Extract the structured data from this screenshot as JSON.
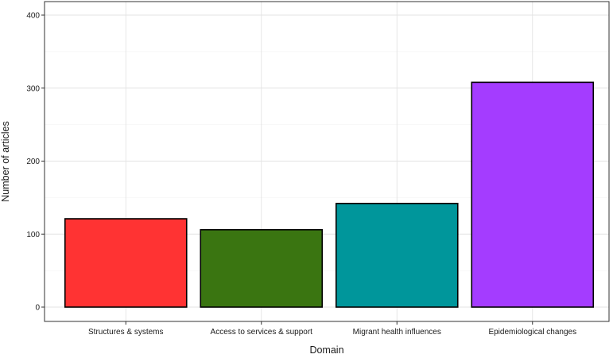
{
  "chart_data": {
    "type": "bar",
    "title": "",
    "xlabel": "Domain",
    "ylabel": "Number of articles",
    "categories": [
      "Structures & systems",
      "Access to services & support",
      "Migrant health influences",
      "Epidemiological changes"
    ],
    "values": [
      121,
      106,
      142,
      308
    ],
    "colors": [
      "#ff3333",
      "#3a7511",
      "#00969b",
      "#a43cff"
    ],
    "ylim": [
      0,
      400
    ],
    "yticks": [
      0,
      100,
      200,
      300,
      400
    ],
    "grid": true,
    "legend": "none"
  }
}
